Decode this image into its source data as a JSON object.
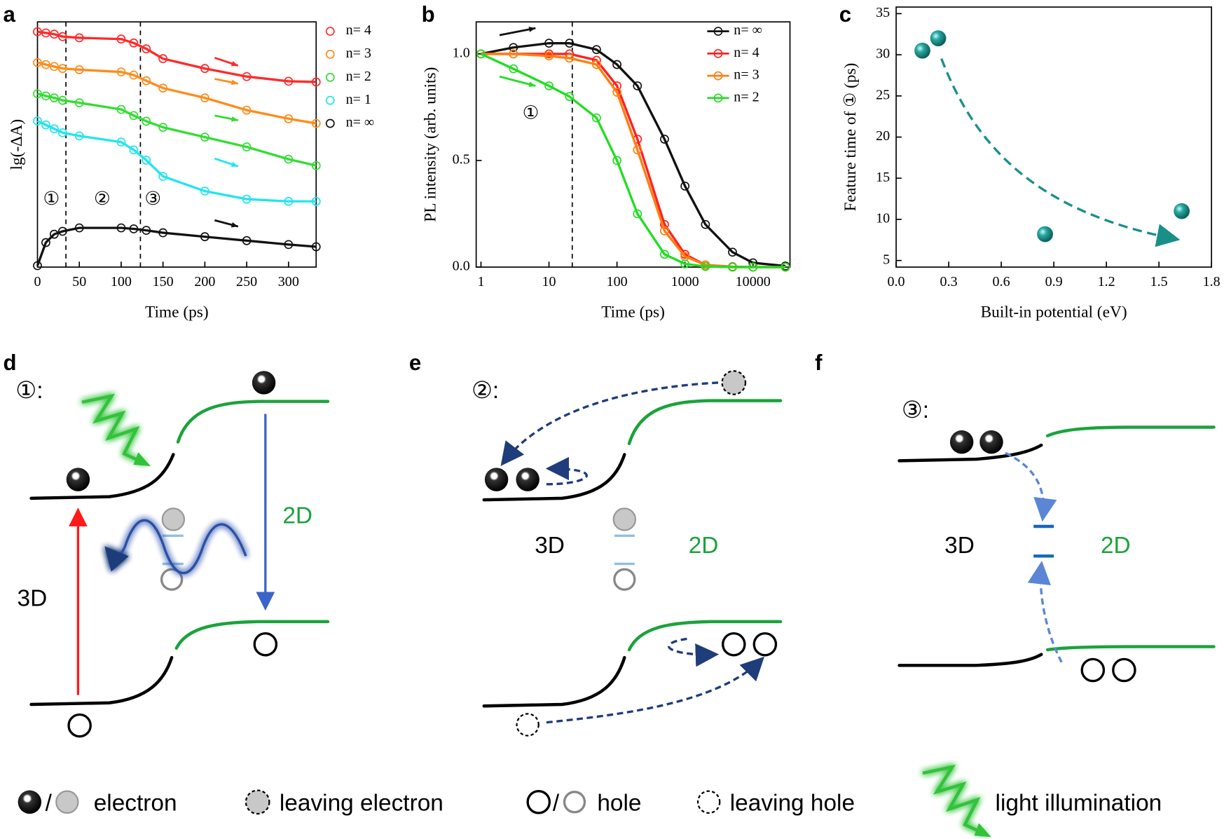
{
  "chart_data": [
    {
      "type": "line",
      "xlabel": "Time (ps)",
      "ylabel": "lg(-∆A)",
      "x": [
        0,
        10,
        20,
        30,
        50,
        100,
        115,
        130,
        150,
        200,
        250,
        300,
        333
      ],
      "xlim": [
        0,
        333
      ],
      "xticks": [
        0,
        50,
        100,
        150,
        200,
        250,
        300
      ],
      "ylim": [
        0,
        100
      ],
      "legend": "right",
      "legend_symbol": "marker",
      "vlines": [
        34,
        123
      ],
      "annotations": [
        "①",
        "②",
        "③"
      ],
      "series": [
        {
          "name": "n= 4",
          "color": "#ff2a2a",
          "values": [
            96,
            95.5,
            95,
            94,
            93.5,
            93,
            91.4,
            89,
            85,
            81,
            77.7,
            75.8,
            75.5
          ]
        },
        {
          "name": "n= 3",
          "color": "#ff8c1a",
          "values": [
            83.4,
            82.6,
            81.8,
            81,
            80.5,
            79.6,
            78.3,
            76,
            73,
            69,
            64,
            60.5,
            58.6
          ]
        },
        {
          "name": "n= 2",
          "color": "#33dd33",
          "values": [
            70.7,
            69.8,
            69,
            68,
            67,
            64.3,
            61.8,
            59.5,
            57,
            53,
            49,
            44,
            41.4
          ]
        },
        {
          "name": "n= 1",
          "color": "#22e5ee",
          "values": [
            59.6,
            58,
            56.4,
            54.8,
            53.5,
            51,
            47.8,
            43.6,
            37,
            31,
            27.7,
            26.8,
            26.8
          ]
        },
        {
          "name": "n= ∞",
          "color": "#111111",
          "values": [
            0.6,
            10,
            13.4,
            14.6,
            16,
            16,
            15.6,
            15,
            14,
            12.4,
            10.8,
            9.2,
            8.3
          ]
        }
      ]
    },
    {
      "type": "line",
      "xscale": "log",
      "xlabel": "Time (ps)",
      "ylabel": "PL intensity (arb. units)",
      "x": [
        1,
        3,
        10,
        20,
        50,
        100,
        200,
        500,
        1000,
        2000,
        5000,
        10000,
        30000
      ],
      "xlim": [
        0.85,
        35000
      ],
      "xticks": [
        1,
        10,
        100,
        1000,
        10000
      ],
      "ylim": [
        0,
        1.15
      ],
      "yticks": [
        {
          "value": 0,
          "label": "0.0"
        },
        0.5,
        {
          "value": 1,
          "label": "1.0"
        }
      ],
      "legend": "upper right",
      "legend_symbol": "line-marker",
      "vlines": [
        22
      ],
      "annotations": [
        "①"
      ],
      "series": [
        {
          "name": "n= ∞",
          "color": "#111111",
          "values": [
            1,
            1.03,
            1.05,
            1.05,
            1.02,
            0.95,
            0.85,
            0.6,
            0.38,
            0.2,
            0.07,
            0.02,
            0.005
          ]
        },
        {
          "name": "n= 4",
          "color": "#ff2020",
          "values": [
            1,
            1,
            1,
            1,
            0.97,
            0.85,
            0.6,
            0.2,
            0.06,
            0.01,
            0.002,
            0,
            0
          ]
        },
        {
          "name": "n= 3",
          "color": "#ff7f0e",
          "values": [
            1,
            1,
            0.99,
            0.98,
            0.95,
            0.82,
            0.55,
            0.17,
            0.05,
            0.01,
            0,
            0,
            0
          ]
        },
        {
          "name": "n= 2",
          "color": "#22dd22",
          "values": [
            1,
            0.93,
            0.85,
            0.8,
            0.7,
            0.5,
            0.25,
            0.06,
            0.015,
            0.003,
            0,
            0,
            0
          ]
        }
      ]
    },
    {
      "type": "scatter",
      "xlabel": "Built-in potential (eV)",
      "ylabel": "Feature time of ① (ps)",
      "x": [
        0.15,
        0.24,
        0.85,
        1.63
      ],
      "values": [
        30.5,
        32,
        8.2,
        11
      ],
      "color": "#1a8f8a",
      "xlim": [
        0,
        1.8
      ],
      "xticks": [
        {
          "value": 0,
          "label": "0.0"
        },
        0.3,
        0.6,
        0.9,
        1.2,
        1.5,
        1.8
      ],
      "ylim": [
        4.2,
        35.8
      ],
      "yticks": [
        5,
        10,
        15,
        20,
        25,
        30,
        35
      ]
    }
  ],
  "panel_labels": [
    "a",
    "b",
    "c",
    "d",
    "e",
    "f"
  ],
  "diagrams": [
    {
      "step": "①:",
      "labels": [
        "3D",
        "2D"
      ]
    },
    {
      "step": "②:",
      "labels": [
        "3D",
        "2D"
      ]
    },
    {
      "step": "③:",
      "labels": [
        "3D",
        "2D"
      ]
    }
  ],
  "legend": [
    {
      "sep": "/",
      "label": "electron"
    },
    {
      "label": "leaving electron"
    },
    {
      "sep": "/",
      "label": "hole"
    },
    {
      "label": "leaving hole"
    },
    {
      "label": "light illumination"
    }
  ]
}
